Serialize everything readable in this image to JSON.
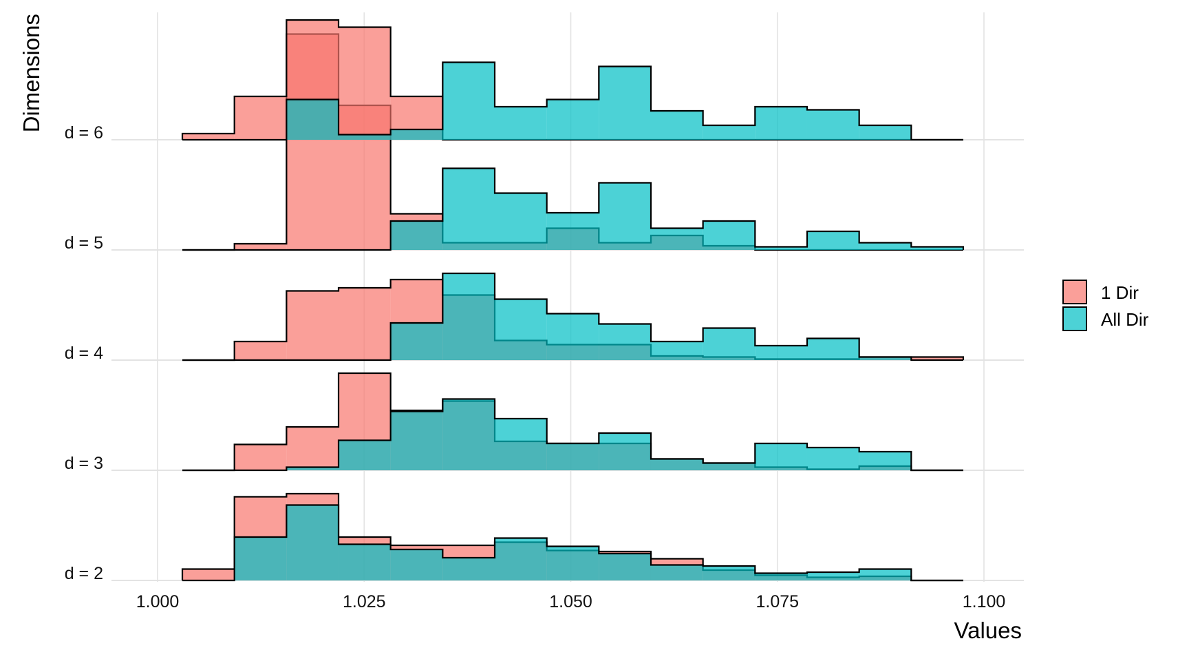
{
  "chart_data": {
    "type": "histogram-ridgeline",
    "xlabel": "Values",
    "ylabel": "Dimensions",
    "xlim": [
      0.9935,
      1.1
    ],
    "x_ticks": [
      1.0,
      1.025,
      1.05,
      1.075,
      1.1
    ],
    "x_tick_labels": [
      "1.000",
      "1.025",
      "1.050",
      "1.075",
      "1.100"
    ],
    "grid": true,
    "legend_placement": "right",
    "bin_edges": [
      1.003,
      1.0093,
      1.0156,
      1.0219,
      1.0282,
      1.0345,
      1.0408,
      1.0471,
      1.0534,
      1.0597,
      1.066,
      1.0723,
      1.0786,
      1.0849,
      1.0912,
      1.0975
    ],
    "rows": [
      {
        "label": "d = 2",
        "series": [
          {
            "name": "1 Dir",
            "heights": [
              0.11,
              0.81,
              0.84,
              0.42,
              0.34,
              0.34,
              0.37,
              0.29,
              0.28,
              0.21,
              0.1,
              0.05,
              0.03,
              0.04,
              0.0
            ]
          },
          {
            "name": "All Dir",
            "heights": [
              0.0,
              0.42,
              0.73,
              0.35,
              0.3,
              0.22,
              0.41,
              0.33,
              0.26,
              0.15,
              0.14,
              0.07,
              0.08,
              0.11,
              0.0
            ]
          }
        ]
      },
      {
        "label": "d = 3",
        "series": [
          {
            "name": "1 Dir",
            "heights": [
              0.0,
              0.25,
              0.42,
              0.94,
              0.58,
              0.67,
              0.28,
              0.26,
              0.26,
              0.11,
              0.07,
              0.03,
              0.01,
              0.04,
              0.0
            ]
          },
          {
            "name": "All Dir",
            "heights": [
              0.0,
              0.0,
              0.03,
              0.29,
              0.57,
              0.69,
              0.5,
              0.26,
              0.36,
              0.11,
              0.07,
              0.26,
              0.22,
              0.18,
              0.0
            ]
          }
        ]
      },
      {
        "label": "d = 4",
        "series": [
          {
            "name": "1 Dir",
            "heights": [
              0.0,
              0.18,
              0.67,
              0.7,
              0.78,
              0.63,
              0.19,
              0.15,
              0.15,
              0.04,
              0.03,
              0.01,
              0.01,
              0.03,
              0.03
            ]
          },
          {
            "name": "All Dir",
            "heights": [
              0.0,
              0.0,
              0.0,
              0.0,
              0.36,
              0.84,
              0.59,
              0.45,
              0.35,
              0.18,
              0.31,
              0.14,
              0.21,
              0.03,
              0.0
            ]
          }
        ]
      },
      {
        "label": "d = 5",
        "series": [
          {
            "name": "1 Dir",
            "heights": [
              0.0,
              0.06,
              2.09,
              1.4,
              0.35,
              0.07,
              0.07,
              0.21,
              0.07,
              0.14,
              0.04,
              0.0,
              0.0,
              0.0,
              0.0
            ]
          },
          {
            "name": "All Dir",
            "heights": [
              0.0,
              0.0,
              0.0,
              0.0,
              0.28,
              0.79,
              0.55,
              0.36,
              0.65,
              0.21,
              0.28,
              0.03,
              0.18,
              0.07,
              0.03
            ]
          }
        ]
      },
      {
        "label": "d = 6",
        "series": [
          {
            "name": "1 Dir",
            "heights": [
              0.06,
              0.42,
              1.16,
              1.09,
              0.42,
              0.0,
              0.0,
              0.0,
              0.0,
              0.0,
              0.0,
              0.0,
              0.0,
              0.0,
              0.0
            ]
          },
          {
            "name": "All Dir",
            "heights": [
              0.0,
              0.0,
              0.39,
              0.05,
              0.1,
              0.75,
              0.32,
              0.39,
              0.71,
              0.28,
              0.14,
              0.32,
              0.29,
              0.14,
              0.0
            ]
          }
        ]
      }
    ]
  },
  "legend": {
    "items": [
      {
        "label": "1 Dir",
        "color": "#F8766D"
      },
      {
        "label": "All Dir",
        "color": "#00BFC4"
      }
    ]
  }
}
